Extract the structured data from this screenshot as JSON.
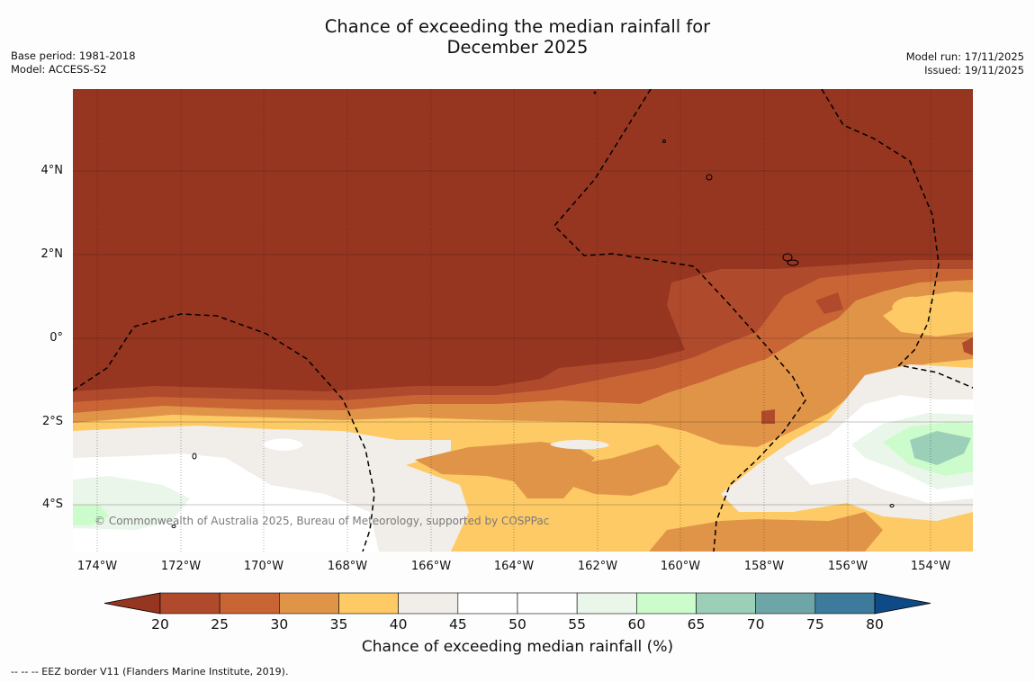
{
  "title_line1": "Chance of exceeding the median rainfall for",
  "title_line2": "December 2025",
  "base_period": "Base period: 1981-2018",
  "model": "Model: ACCESS-S2",
  "model_run": "Model run: 17/11/2025",
  "issued": "Issued: 19/11/2025",
  "copyright": "© Commonwealth of Australia 2025, Bureau of Meteorology, supported by COSPPac",
  "lat_labels": [
    "4°N",
    "2°N",
    "0°",
    "2°S",
    "4°S"
  ],
  "lon_labels": [
    "174°W",
    "172°W",
    "170°W",
    "168°W",
    "166°W",
    "164°W",
    "162°W",
    "160°W",
    "158°W",
    "156°W",
    "154°W"
  ],
  "colorbar": {
    "title": "Chance of exceeding median rainfall (%)",
    "ticks": [
      "20",
      "25",
      "30",
      "35",
      "40",
      "45",
      "50",
      "55",
      "60",
      "65",
      "70",
      "75",
      "80"
    ],
    "colors": [
      "#963520",
      "#b04a2c",
      "#c96535",
      "#e09448",
      "#fdca65",
      "#f1ede8",
      "#ffffff",
      "#ffffff",
      "#eaf6ea",
      "#ccfccc",
      "#9ccfb7",
      "#6ea6a7",
      "#3d7a9b",
      "#0e4a86"
    ]
  },
  "legend_footer": "--  --  -- EEZ border V11 (Flanders Marine Institute, 2019)."
}
